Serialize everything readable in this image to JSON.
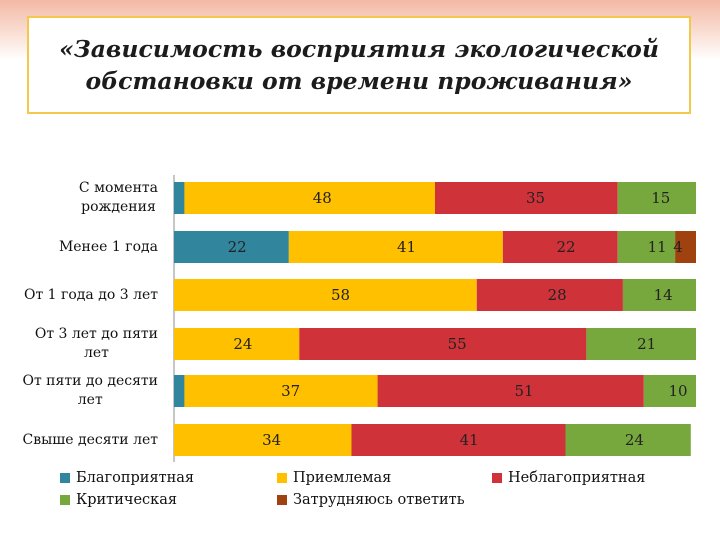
{
  "title": {
    "line1": "«Зависимость восприятия экологической",
    "line2": "обстановки от времени проживания»"
  },
  "chart_data": {
    "type": "bar",
    "orientation": "horizontal",
    "stacked": true,
    "title": "«Зависимость восприятия экологической обстановки от времени проживания»",
    "categories": [
      "С момента рождения",
      "Менее 1 года",
      "От 1 года до 3 лет",
      "От 3 лет до пяти лет",
      "От пяти до десяти лет",
      "Свыше десяти лет"
    ],
    "category_lines": [
      [
        "С момента",
        "рождения"
      ],
      [
        "Менее 1 года"
      ],
      [
        "От 1 года до 3 лет"
      ],
      [
        "От 3 лет до пяти",
        "лет"
      ],
      [
        "От пяти до десяти",
        "лет"
      ],
      [
        "Свыше десяти лет"
      ]
    ],
    "series": [
      {
        "name": "Благоприятная",
        "color": "#31859c",
        "values": [
          2,
          22,
          0,
          0,
          2,
          0
        ]
      },
      {
        "name": "Приемлемая",
        "color": "#ffc000",
        "values": [
          48,
          41,
          58,
          24,
          37,
          34
        ]
      },
      {
        "name": "Неблагоприятная",
        "color": "#d0323a",
        "values": [
          35,
          22,
          28,
          55,
          51,
          41
        ]
      },
      {
        "name": "Критическая",
        "color": "#77a83d",
        "values": [
          15,
          11,
          14,
          21,
          10,
          24
        ]
      },
      {
        "name": "Затрудняюсь ответить",
        "color": "#a0420f",
        "values": [
          0,
          4,
          0,
          0,
          0,
          0
        ]
      }
    ],
    "label_color": "#222222",
    "legend_position": "bottom",
    "grid": false
  }
}
